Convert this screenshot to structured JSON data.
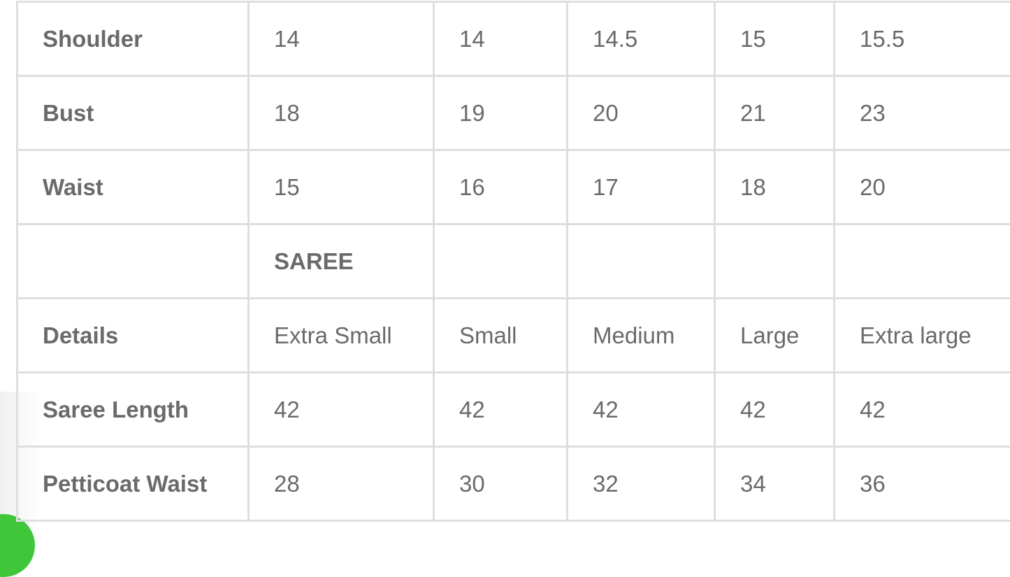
{
  "rows": [
    {
      "label": "Shoulder",
      "values": [
        "14",
        "14",
        "14.5",
        "15",
        "15.5"
      ]
    },
    {
      "label": "Bust",
      "values": [
        "18",
        "19",
        "20",
        "21",
        "23"
      ]
    },
    {
      "label": "Waist",
      "values": [
        "15",
        "16",
        "17",
        "18",
        "20"
      ]
    }
  ],
  "section_title": "SAREE",
  "details_row": {
    "label": "Details",
    "values": [
      "Extra Small",
      "Small",
      "Medium",
      "Large",
      "Extra large"
    ]
  },
  "saree_rows": [
    {
      "label": "Saree Length",
      "values": [
        "42",
        "42",
        "42",
        "42",
        "42"
      ]
    },
    {
      "label": "Petticoat Waist",
      "values": [
        "28",
        "30",
        "32",
        "34",
        "36"
      ]
    }
  ],
  "colors": {
    "text": "#6a6a6a",
    "border": "#dedede",
    "accent": "#3fc63a"
  }
}
